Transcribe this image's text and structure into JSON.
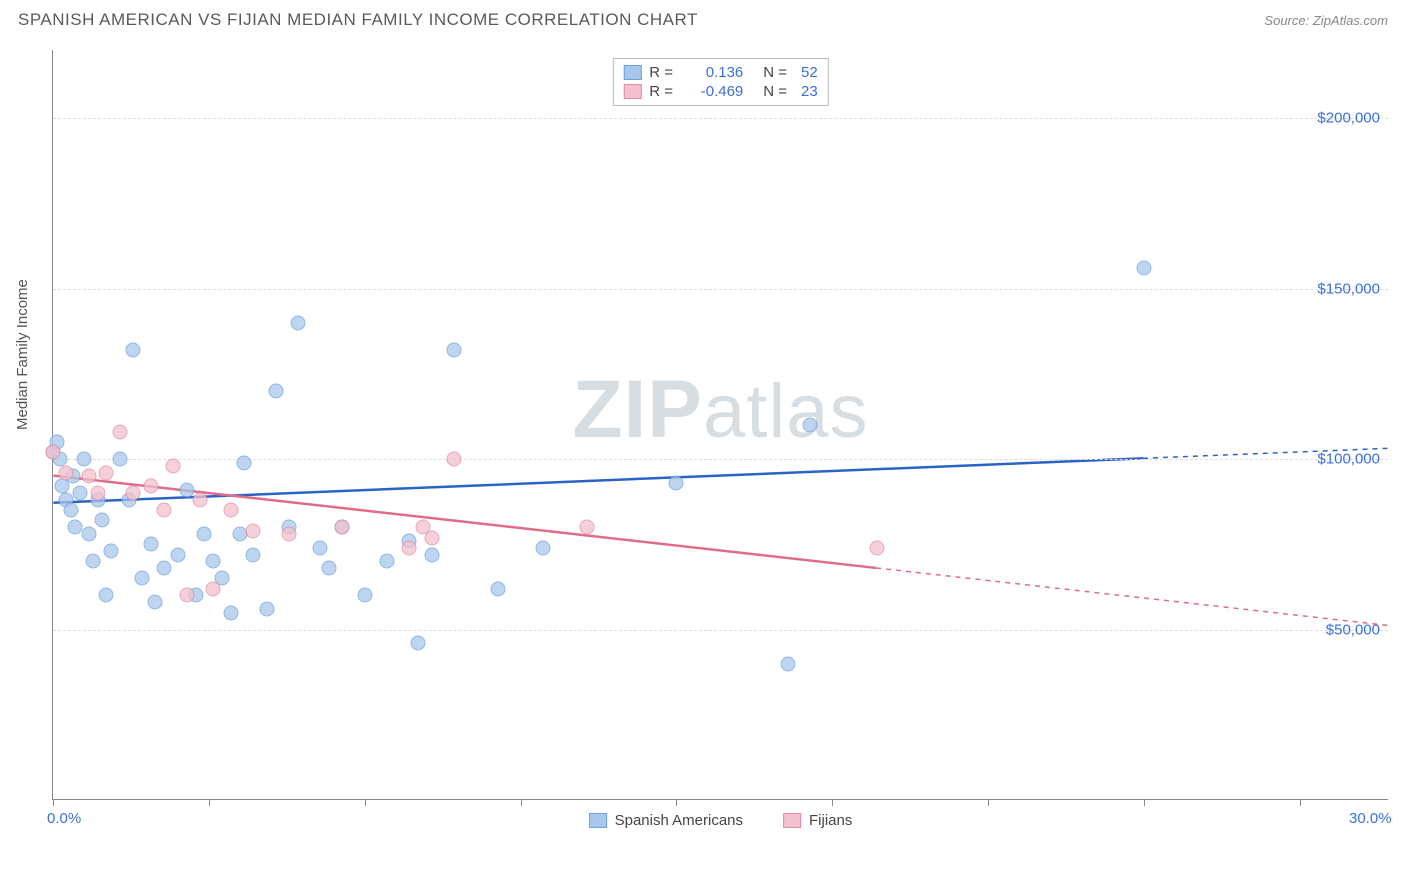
{
  "header": {
    "title": "SPANISH AMERICAN VS FIJIAN MEDIAN FAMILY INCOME CORRELATION CHART",
    "source_label": "Source:",
    "source_name": "ZipAtlas.com"
  },
  "chart": {
    "type": "scatter",
    "y_axis_label": "Median Family Income",
    "x_range": [
      0,
      30
    ],
    "y_range": [
      0,
      220000
    ],
    "x_ticks_pct": [
      0,
      3.5,
      7,
      10.5,
      14,
      17.5,
      21,
      24.5,
      28
    ],
    "x_labels": [
      {
        "pct": 0,
        "text": "0.0%"
      },
      {
        "pct": 30,
        "text": "30.0%"
      }
    ],
    "y_gridlines": [
      50000,
      100000,
      150000,
      200000
    ],
    "y_tick_labels": [
      {
        "val": 50000,
        "text": "$50,000"
      },
      {
        "val": 100000,
        "text": "$100,000"
      },
      {
        "val": 150000,
        "text": "$150,000"
      },
      {
        "val": 200000,
        "text": "$200,000"
      }
    ],
    "background_color": "#ffffff",
    "grid_color": "#dddddd",
    "axis_color": "#888888",
    "point_radius": 7.5,
    "series": [
      {
        "name": "Spanish Americans",
        "fill": "#a9c7ea",
        "stroke": "#6da0dd",
        "opacity": 0.75,
        "points": [
          [
            0.0,
            102000
          ],
          [
            0.1,
            105000
          ],
          [
            0.15,
            100000
          ],
          [
            0.2,
            92000
          ],
          [
            0.3,
            88000
          ],
          [
            0.4,
            85000
          ],
          [
            0.45,
            95000
          ],
          [
            0.5,
            80000
          ],
          [
            0.6,
            90000
          ],
          [
            0.7,
            100000
          ],
          [
            0.8,
            78000
          ],
          [
            0.9,
            70000
          ],
          [
            1.0,
            88000
          ],
          [
            1.1,
            82000
          ],
          [
            1.2,
            60000
          ],
          [
            1.3,
            73000
          ],
          [
            1.5,
            100000
          ],
          [
            1.7,
            88000
          ],
          [
            1.8,
            132000
          ],
          [
            2.0,
            65000
          ],
          [
            2.2,
            75000
          ],
          [
            2.3,
            58000
          ],
          [
            2.5,
            68000
          ],
          [
            2.8,
            72000
          ],
          [
            3.0,
            91000
          ],
          [
            3.2,
            60000
          ],
          [
            3.4,
            78000
          ],
          [
            3.6,
            70000
          ],
          [
            3.8,
            65000
          ],
          [
            4.0,
            55000
          ],
          [
            4.2,
            78000
          ],
          [
            4.3,
            99000
          ],
          [
            4.5,
            72000
          ],
          [
            4.8,
            56000
          ],
          [
            5.0,
            120000
          ],
          [
            5.3,
            80000
          ],
          [
            5.5,
            140000
          ],
          [
            6.0,
            74000
          ],
          [
            6.2,
            68000
          ],
          [
            6.5,
            80000
          ],
          [
            7.0,
            60000
          ],
          [
            7.5,
            70000
          ],
          [
            8.0,
            76000
          ],
          [
            8.2,
            46000
          ],
          [
            8.5,
            72000
          ],
          [
            9.0,
            132000
          ],
          [
            10.0,
            62000
          ],
          [
            11.0,
            74000
          ],
          [
            14.0,
            93000
          ],
          [
            16.5,
            40000
          ],
          [
            17.0,
            110000
          ],
          [
            24.5,
            156000
          ]
        ],
        "trend": {
          "x1": 0,
          "y1": 87000,
          "x2": 30,
          "y2": 103000,
          "dash_limit": 24.5,
          "color": "#2b62c8",
          "width": 2.5
        }
      },
      {
        "name": "Fijians",
        "fill": "#f3c1cd",
        "stroke": "#e58aa3",
        "opacity": 0.75,
        "points": [
          [
            0.0,
            102000
          ],
          [
            0.3,
            96000
          ],
          [
            0.8,
            95000
          ],
          [
            1.0,
            90000
          ],
          [
            1.2,
            96000
          ],
          [
            1.5,
            108000
          ],
          [
            1.8,
            90000
          ],
          [
            2.2,
            92000
          ],
          [
            2.5,
            85000
          ],
          [
            2.7,
            98000
          ],
          [
            3.0,
            60000
          ],
          [
            3.3,
            88000
          ],
          [
            3.6,
            62000
          ],
          [
            4.0,
            85000
          ],
          [
            4.5,
            79000
          ],
          [
            5.3,
            78000
          ],
          [
            6.5,
            80000
          ],
          [
            8.0,
            74000
          ],
          [
            8.3,
            80000
          ],
          [
            8.5,
            77000
          ],
          [
            9.0,
            100000
          ],
          [
            12.0,
            80000
          ],
          [
            18.5,
            74000
          ]
        ],
        "trend": {
          "x1": 0,
          "y1": 95000,
          "x2": 30,
          "y2": 51000,
          "dash_limit": 18.5,
          "color": "#e06c8b",
          "width": 2.5
        }
      }
    ],
    "watermark": {
      "bold": "ZIP",
      "rest": "atlas"
    }
  },
  "legend_top": {
    "rows": [
      {
        "swatch_fill": "#a9c7ea",
        "swatch_stroke": "#6da0dd",
        "r_label": "R =",
        "r_value": "0.136",
        "n_label": "N =",
        "n_value": "52"
      },
      {
        "swatch_fill": "#f3c1cd",
        "swatch_stroke": "#e58aa3",
        "r_label": "R =",
        "r_value": "-0.469",
        "n_label": "N =",
        "n_value": "23"
      }
    ]
  },
  "legend_bottom": {
    "items": [
      {
        "swatch_fill": "#a9c7ea",
        "swatch_stroke": "#6da0dd",
        "label": "Spanish Americans"
      },
      {
        "swatch_fill": "#f3c1cd",
        "swatch_stroke": "#e58aa3",
        "label": "Fijians"
      }
    ]
  }
}
